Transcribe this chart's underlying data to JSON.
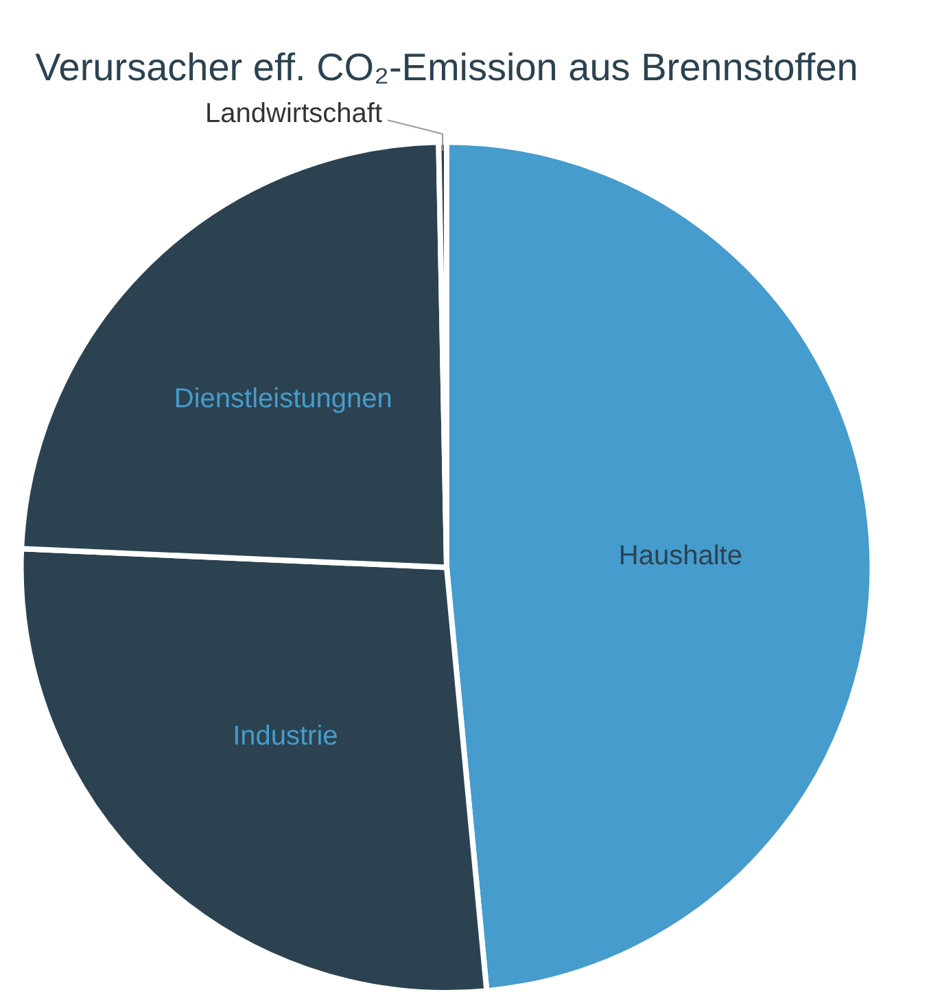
{
  "chart_data": {
    "type": "pie",
    "title": "Verursacher eff. CO₂-Emission aus Brennstoffen",
    "categories": [
      "Haushalte",
      "Industrie",
      "Dienstleistungnen",
      "Landwirtschaft"
    ],
    "values": [
      48.5,
      27.2,
      24.0,
      0.3
    ],
    "colors": [
      "#459ccd",
      "#2c4250",
      "#2c4250",
      "#2c4250"
    ],
    "legend": false
  }
}
